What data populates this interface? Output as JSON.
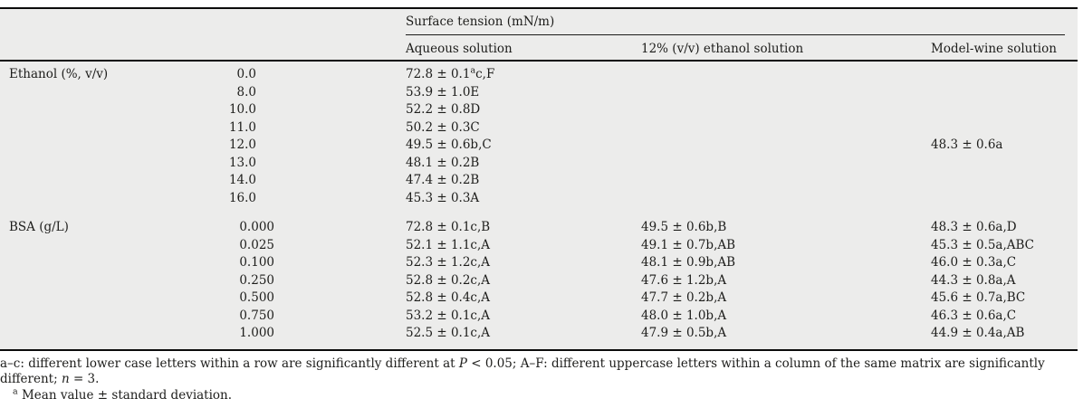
{
  "table": {
    "header": {
      "group_title": "Surface tension (mN/m)",
      "col_aqueous": "Aqueous solution",
      "col_ethanol12": "12% (v/v) ethanol solution",
      "col_modelwine": "Model-wine solution"
    },
    "ethanol_section": {
      "label": "Ethanol (%, v/v)",
      "rows": [
        {
          "conc": "0.0",
          "aq_pre": "72.8 ± 0.1",
          "aq_sup": "a",
          "aq_post": "c,F"
        },
        {
          "conc": "8.0",
          "aq": "53.9 ± 1.0E"
        },
        {
          "conc": "10.0",
          "aq": "52.2 ± 0.8D"
        },
        {
          "conc": "11.0",
          "aq": "50.2 ± 0.3C"
        },
        {
          "conc": "12.0",
          "aq": "49.5 ± 0.6b,C",
          "wine": "48.3 ± 0.6a"
        },
        {
          "conc": "13.0",
          "aq": "48.1 ± 0.2B"
        },
        {
          "conc": "14.0",
          "aq": "47.4 ± 0.2B"
        },
        {
          "conc": "16.0",
          "aq": "45.3 ± 0.3A"
        }
      ]
    },
    "bsa_section": {
      "label": "BSA (g/L)",
      "rows": [
        {
          "conc": "0.000",
          "aq": "72.8 ± 0.1c,B",
          "eth12": "49.5 ± 0.6b,B",
          "wine": "48.3 ± 0.6a,D"
        },
        {
          "conc": "0.025",
          "aq": "52.1 ± 1.1c,A",
          "eth12": "49.1 ± 0.7b,AB",
          "wine": "45.3 ± 0.5a,ABC"
        },
        {
          "conc": "0.100",
          "aq": "52.3 ± 1.2c,A",
          "eth12": "48.1 ± 0.9b,AB",
          "wine": "46.0 ± 0.3a,C"
        },
        {
          "conc": "0.250",
          "aq": "52.8 ± 0.2c,A",
          "eth12": "47.6 ± 1.2b,A",
          "wine": "44.3 ± 0.8a,A"
        },
        {
          "conc": "0.500",
          "aq": "52.8 ± 0.4c,A",
          "eth12": "47.7 ± 0.2b,A",
          "wine": "45.6 ± 0.7a,BC"
        },
        {
          "conc": "0.750",
          "aq": "53.2 ± 0.1c,A",
          "eth12": "48.0 ± 1.0b,A",
          "wine": "46.3 ± 0.6a,C"
        },
        {
          "conc": "1.000",
          "aq": "52.5 ± 0.1c,A",
          "eth12": "47.9 ± 0.5b,A",
          "wine": "44.9 ± 0.4a,AB"
        }
      ]
    }
  },
  "footnotes": {
    "note1_pre": "a–c: different lower case letters within a row are significantly different at ",
    "note1_P": "P",
    "note1_mid": " < 0.05; A–F: different uppercase letters within a column of the same matrix are significantly different; ",
    "note1_n": "n",
    "note1_post": " = 3.",
    "note2_marker": "a",
    "note2_text": "Mean value ± standard deviation."
  },
  "colors": {
    "table_background": "#ececeb",
    "rule_color": "#0b0b0b",
    "text_color": "#1d1d1b"
  }
}
